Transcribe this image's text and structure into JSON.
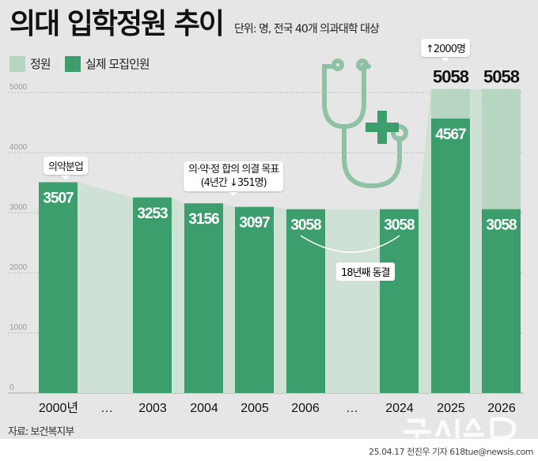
{
  "title": "의대 입학정원 추이",
  "subtitle": "단위: 명, 전국 40개 의과대학 대상",
  "legend": [
    {
      "label": "정원",
      "color": "#b7d6c2"
    },
    {
      "label": "실제 모집인원",
      "color": "#3c9e6c"
    }
  ],
  "annotations": {
    "separation": "의약분업",
    "agreement_line1": "의·약·정 합의 의결 목표",
    "agreement_line2": "(4년간 ↓351명)",
    "frozen": "18년째 동결",
    "increase": "↑2000명"
  },
  "source": "자료: 보건복지부",
  "credit": "25.04.17 전진우 기자 618tue@newsis.com",
  "watermark": "뉴시스",
  "chart_data": {
    "type": "bar",
    "categories": [
      "2000년",
      "…",
      "2003",
      "2004",
      "2005",
      "2006",
      "…",
      "2024",
      "2025",
      "2026"
    ],
    "series": [
      {
        "name": "정원",
        "values": [
          3507,
          null,
          3253,
          3156,
          3097,
          3058,
          null,
          3058,
          5058,
          5058
        ]
      },
      {
        "name": "실제 모집인원",
        "values": [
          3507,
          null,
          3253,
          3156,
          3097,
          3058,
          null,
          3058,
          4567,
          3058
        ]
      }
    ],
    "yticks": [
      0,
      1000,
      2000,
      3000,
      4000,
      5000
    ],
    "ylim": [
      0,
      5000
    ],
    "grid": true,
    "legend_position": "top-left",
    "colors": {
      "quota": "#b7d6c2",
      "actual": "#3c9e6c",
      "area": "#cfe0d4",
      "grid": "#bbbbbb"
    }
  }
}
